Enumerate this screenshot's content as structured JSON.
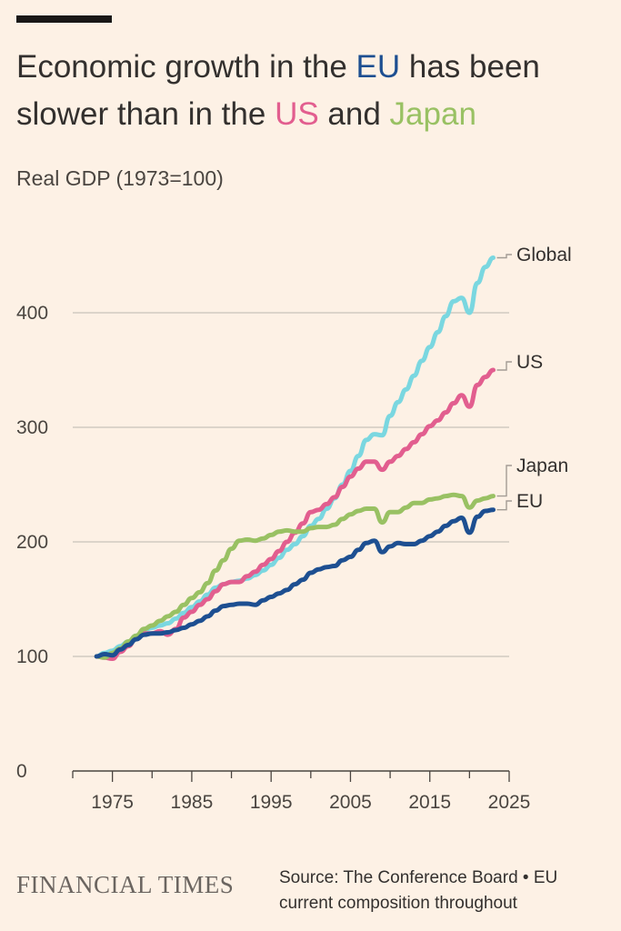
{
  "title": {
    "part1": "Economic growth in the ",
    "eu": "EU",
    "part2": " has been slower than in the ",
    "us": "US",
    "part3": " and ",
    "japan": "Japan"
  },
  "subtitle": "Real GDP (1973=100)",
  "source": "Source: The Conference Board • EU current composition throughout",
  "brand": "FINANCIAL TIMES",
  "colors": {
    "eu": "#1D4F91",
    "us": "#E25E8F",
    "japan": "#99C163",
    "global": "#7AD7E0",
    "grid": "#C9C2BA",
    "axis": "#4A4540"
  },
  "chart_data": {
    "type": "line",
    "title": "Real GDP (1973=100)",
    "xlabel": "",
    "ylabel": "",
    "xlim": [
      1970,
      2025
    ],
    "ylim": [
      0,
      450
    ],
    "yticks": [
      0,
      100,
      200,
      300,
      400
    ],
    "xticks": [
      1975,
      1985,
      1995,
      2005,
      2015,
      2025
    ],
    "x": [
      1973,
      1974,
      1975,
      1976,
      1977,
      1978,
      1979,
      1980,
      1981,
      1982,
      1983,
      1984,
      1985,
      1986,
      1987,
      1988,
      1989,
      1990,
      1991,
      1992,
      1993,
      1994,
      1995,
      1996,
      1997,
      1998,
      1999,
      2000,
      2001,
      2002,
      2003,
      2004,
      2005,
      2006,
      2007,
      2008,
      2009,
      2010,
      2011,
      2012,
      2013,
      2014,
      2015,
      2016,
      2017,
      2018,
      2019,
      2020,
      2021,
      2022,
      2023
    ],
    "series": [
      {
        "name": "Global",
        "label": "Global",
        "color": "#7AD7E0",
        "values": [
          100,
          103,
          105,
          109,
          113,
          118,
          123,
          125,
          127,
          129,
          133,
          138,
          143,
          148,
          154,
          160,
          163,
          165,
          166,
          168,
          171,
          175,
          180,
          186,
          193,
          198,
          205,
          214,
          220,
          229,
          238,
          250,
          262,
          275,
          289,
          294,
          293,
          310,
          322,
          333,
          345,
          358,
          370,
          383,
          397,
          410,
          413,
          400,
          426,
          440,
          448
        ]
      },
      {
        "name": "US",
        "label": "US",
        "color": "#E25E8F",
        "values": [
          100,
          99,
          98,
          104,
          109,
          116,
          120,
          120,
          122,
          119,
          124,
          134,
          139,
          145,
          150,
          157,
          163,
          165,
          165,
          170,
          174,
          180,
          185,
          192,
          200,
          208,
          216,
          226,
          228,
          233,
          239,
          248,
          257,
          264,
          270,
          270,
          263,
          270,
          275,
          281,
          287,
          294,
          301,
          306,
          313,
          321,
          328,
          318,
          337,
          344,
          350
        ]
      },
      {
        "name": "Japan",
        "label": "Japan",
        "color": "#99C163",
        "values": [
          100,
          99,
          103,
          107,
          113,
          118,
          124,
          127,
          131,
          135,
          139,
          145,
          151,
          156,
          164,
          175,
          184,
          194,
          201,
          202,
          201,
          203,
          206,
          209,
          210,
          209,
          209,
          212,
          213,
          213,
          215,
          220,
          224,
          227,
          229,
          229,
          217,
          226,
          226,
          230,
          234,
          234,
          237,
          238,
          240,
          241,
          240,
          230,
          236,
          238,
          240
        ]
      },
      {
        "name": "EU",
        "label": "EU",
        "color": "#1D4F91",
        "values": [
          100,
          102,
          101,
          106,
          110,
          115,
          119,
          120,
          120,
          121,
          123,
          125,
          128,
          131,
          135,
          140,
          144,
          145,
          146,
          146,
          145,
          149,
          152,
          155,
          158,
          163,
          167,
          173,
          176,
          178,
          179,
          184,
          187,
          193,
          199,
          201,
          191,
          196,
          199,
          198,
          198,
          201,
          205,
          209,
          214,
          218,
          221,
          208,
          222,
          227,
          228
        ]
      }
    ],
    "legend_position": "right-inline"
  }
}
